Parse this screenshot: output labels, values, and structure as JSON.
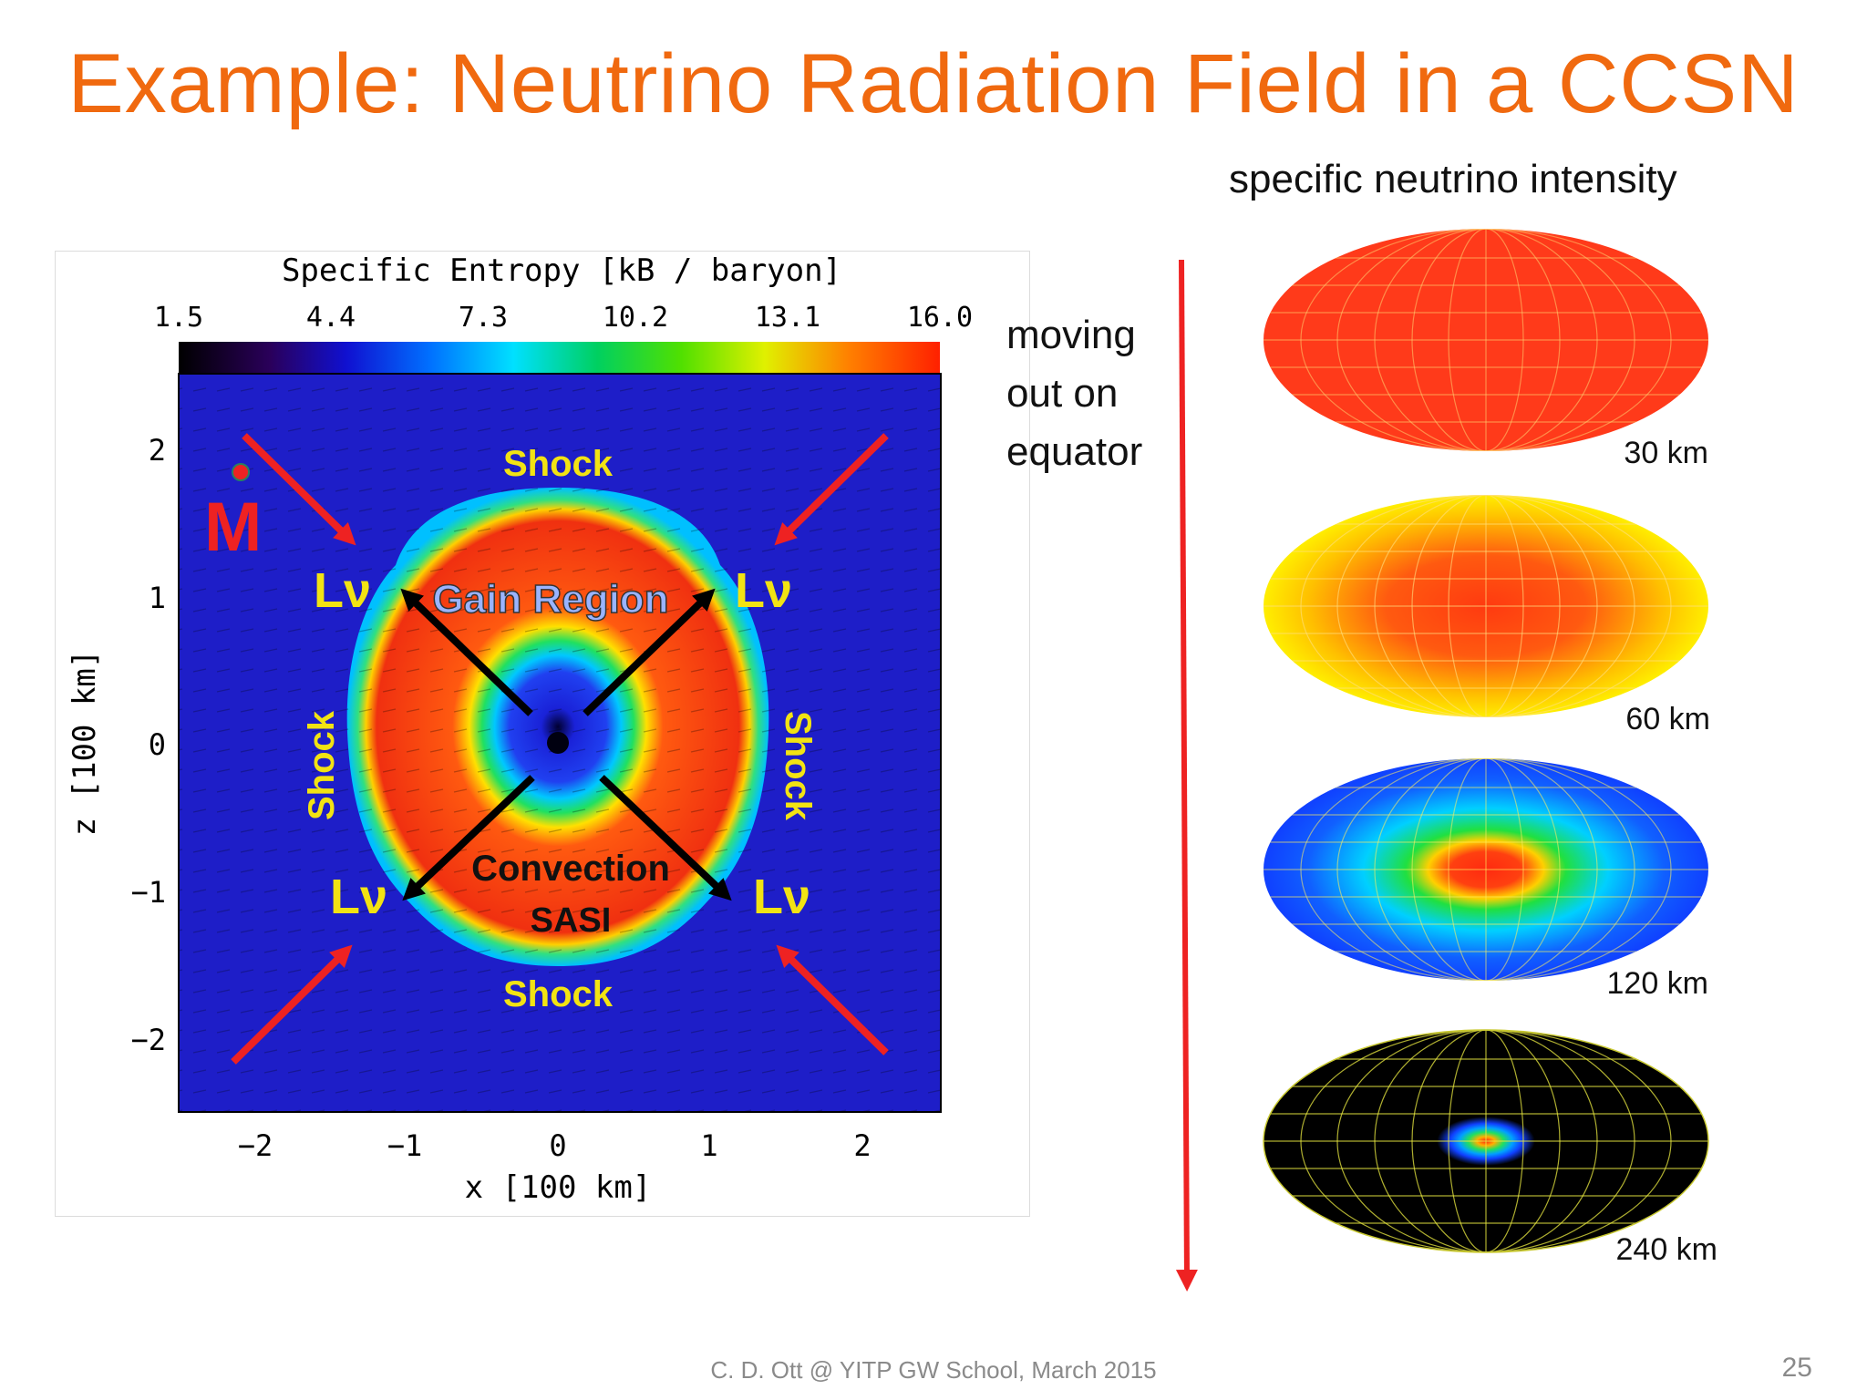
{
  "title": "Example: Neutrino Radiation Field in a CCSN",
  "colorbar": {
    "label": "Specific Entropy [kB / baryon]",
    "ticks": [
      "1.5",
      "4.4",
      "7.3",
      "10.2",
      "13.1",
      "16.0"
    ]
  },
  "axes": {
    "x_label": "x [100 km]",
    "y_label": "z [100 km]",
    "x_ticks": [
      "−2",
      "−1",
      "0",
      "1",
      "2"
    ],
    "y_ticks": [
      "2",
      "1",
      "0",
      "−1",
      "−2"
    ]
  },
  "annotations": {
    "shock_top": "Shock",
    "shock_bottom": "Shock",
    "shock_left": "Shock",
    "shock_right": "Shock",
    "gain_region": "Gain Region",
    "convection": "Convection",
    "sasi": "SASI",
    "lnu": "Lν",
    "mdot": "M"
  },
  "intensity": {
    "title": "specific neutrino intensity",
    "maps": [
      {
        "label": "30 km"
      },
      {
        "label": "60 km"
      },
      {
        "label": "120 km"
      },
      {
        "label": "240 km"
      }
    ]
  },
  "moving_text": [
    "moving",
    "out on",
    "equator"
  ],
  "footer": "C. D. Ott @ YITP GW School,  March 2015",
  "page_number": "25",
  "colors": {
    "title": "#f0690f",
    "plot_background": "#1e1ec8",
    "arrow_red": "#ee2222",
    "annotation_yellow": "#f2e313"
  }
}
